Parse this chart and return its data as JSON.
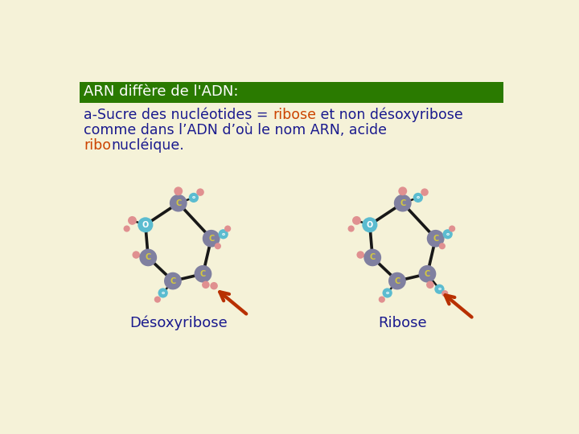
{
  "bg_color": "#f5f2d8",
  "title_bg_color": "#2a7a00",
  "title_text": "ARN diffère de l'ADN:",
  "title_text_color": "#ffffff",
  "body_line1_parts": [
    {
      "text": "a-Sucre des nucléotides = ",
      "color": "#1a1a8e"
    },
    {
      "text": "ribose",
      "color": "#cc4400"
    },
    {
      "text": " et non désoxyribose",
      "color": "#1a1a8e"
    }
  ],
  "body_line2": "comme dans l’ADN d’où le nom ARN, acide",
  "body_line2_color": "#1a1a8e",
  "body_line3_parts": [
    {
      "text": "ribo",
      "color": "#cc4400"
    },
    {
      "text": "nucléique.",
      "color": "#1a1a8e"
    }
  ],
  "label_left": "Désoxyribose",
  "label_right": "Ribose",
  "label_color": "#1a1a8e",
  "arrow_color": "#b83000",
  "C_color": "#8080a0",
  "O_color": "#5bbcd0",
  "H_color": "#e09090",
  "bond_color": "#181818",
  "C_text": "#d4c840",
  "O_text": "#ffffff"
}
